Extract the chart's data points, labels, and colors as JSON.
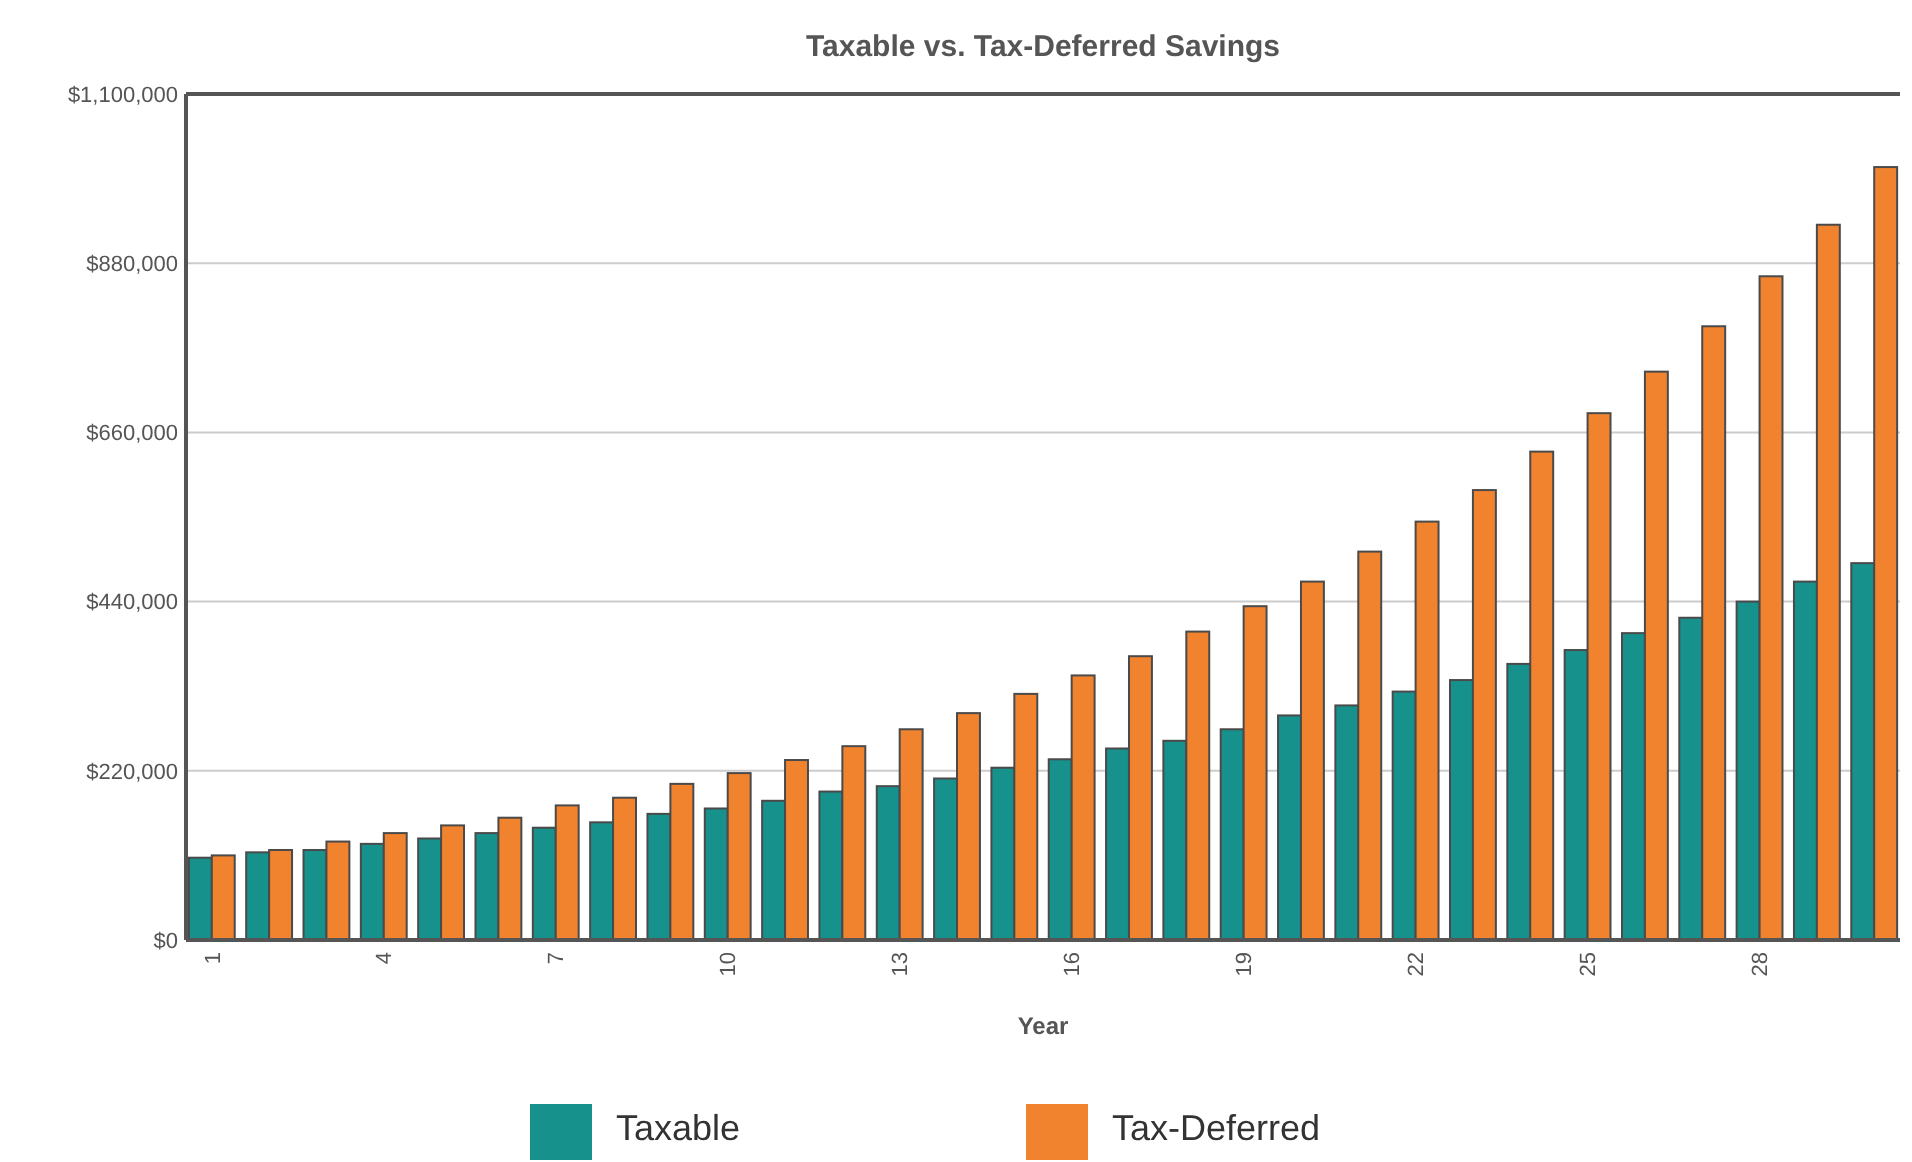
{
  "chart_data": {
    "type": "bar",
    "title": "Taxable vs. Tax-Deferred Savings",
    "xlabel": "Year",
    "categories": [
      "1",
      null,
      null,
      "4",
      null,
      null,
      "7",
      null,
      null,
      "10",
      null,
      null,
      "13",
      null,
      null,
      "16",
      null,
      null,
      "19",
      null,
      null,
      "22",
      null,
      null,
      "25",
      null,
      null,
      "28",
      null,
      null
    ],
    "series": [
      {
        "name": "Taxable",
        "color": "#17918c",
        "values": [
          107000,
          114000,
          117000,
          125000,
          132000,
          139000,
          146000,
          153000,
          164000,
          171000,
          181000,
          193000,
          200000,
          210000,
          224000,
          235000,
          249000,
          259000,
          274000,
          292000,
          305000,
          323000,
          338000,
          359000,
          377000,
          399000,
          419000,
          440000,
          466000,
          490000
        ]
      },
      {
        "name": "Tax-Deferred",
        "color": "#f2832e",
        "values": [
          110000,
          117000,
          128000,
          139000,
          149000,
          159000,
          175000,
          185000,
          203000,
          217000,
          234000,
          252000,
          274000,
          295000,
          320000,
          344000,
          369000,
          401000,
          434000,
          466000,
          505000,
          544000,
          585000,
          635000,
          685000,
          739000,
          798000,
          863000,
          930000,
          1005000
        ]
      }
    ],
    "ylim": [
      0,
      1100000
    ],
    "yticks": [
      {
        "value": 0,
        "label": "$0"
      },
      {
        "value": 220000,
        "label": "$220,000"
      },
      {
        "value": 440000,
        "label": "$440,000"
      },
      {
        "value": 660000,
        "label": "$660,000"
      },
      {
        "value": 880000,
        "label": "$880,000"
      },
      {
        "value": 1100000,
        "label": "$1,100,000"
      }
    ],
    "grid": "y",
    "legend": "bottom"
  }
}
